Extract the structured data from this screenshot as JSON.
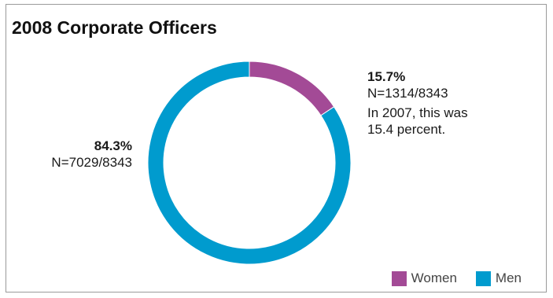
{
  "chart_data": {
    "type": "pie",
    "title": "2008 Corporate Officers",
    "categories": [
      "Women",
      "Men"
    ],
    "values": [
      15.7,
      84.3
    ],
    "colors": {
      "Women": "#a34a96",
      "Men": "#009bce"
    },
    "labels": {
      "women": {
        "percent": "15.7%",
        "count": "N=1314/8343",
        "note_line1": "In 2007, this was",
        "note_line2": "15.4 percent."
      },
      "men": {
        "percent": "84.3%",
        "count": "N=7029/8343"
      }
    },
    "legend": {
      "placement": "bottom-right",
      "items": [
        {
          "label": "Women",
          "color": "#a34a96"
        },
        {
          "label": "Men",
          "color": "#009bce"
        }
      ]
    }
  }
}
